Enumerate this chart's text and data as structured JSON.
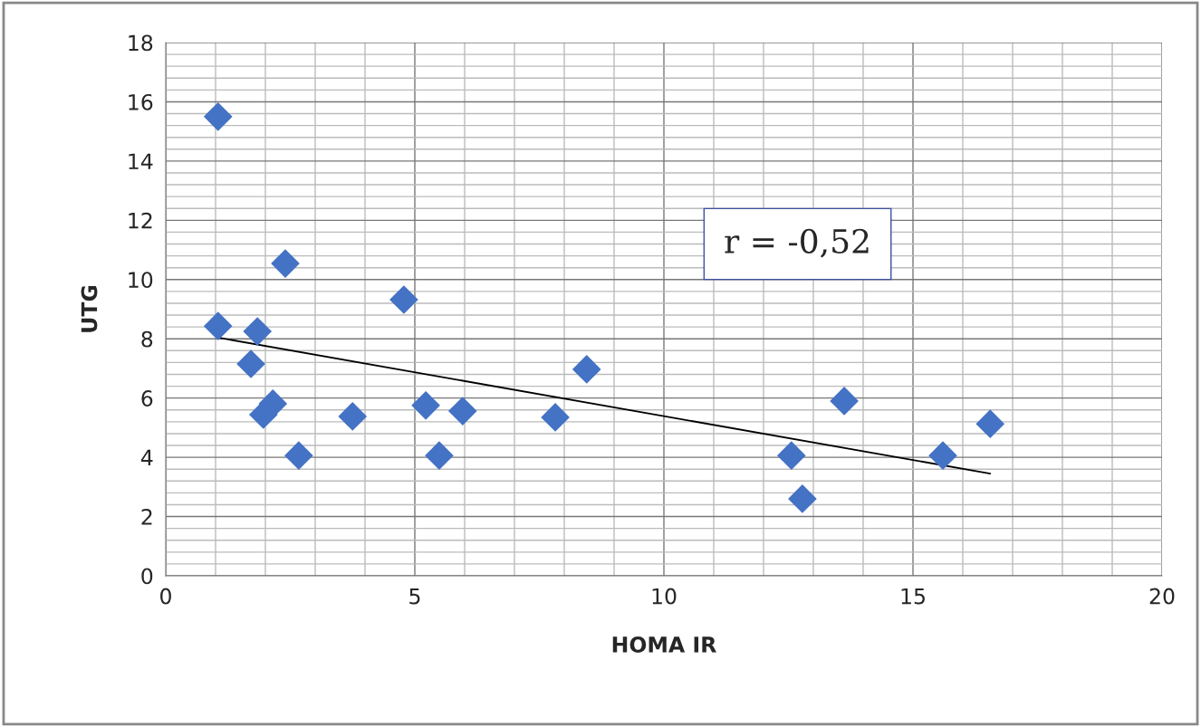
{
  "chart_data": {
    "type": "scatter",
    "xlabel": "HOMA IR",
    "ylabel": "UTG",
    "xlim": [
      0,
      20
    ],
    "xticks": [
      0,
      5,
      10,
      15,
      20
    ],
    "ylim": [
      0,
      18
    ],
    "yticks": [
      0,
      2,
      4,
      6,
      8,
      10,
      12,
      14,
      16,
      18
    ],
    "grid": true,
    "legend": false,
    "series": [
      {
        "color": "#4472c4",
        "marker": "diamond",
        "x": [
          1.05,
          1.05,
          2.4,
          4.78,
          1.84,
          1.71,
          2.15,
          1.96,
          2.67,
          3.75,
          5.22,
          5.49,
          5.96,
          7.82,
          8.45,
          12.56,
          12.78,
          13.62,
          15.6,
          16.55
        ],
        "values": [
          15.5,
          8.43,
          10.54,
          9.32,
          8.25,
          7.15,
          5.81,
          5.44,
          4.06,
          5.38,
          5.75,
          4.06,
          5.56,
          5.35,
          6.97,
          4.06,
          2.6,
          5.9,
          4.06,
          5.13
        ]
      },
      {
        "type": "line",
        "color": "#000000",
        "marker": "none",
        "line_style": "solid",
        "x": [
          1.05,
          16.55
        ],
        "values": [
          8.04,
          3.45
        ]
      }
    ],
    "annotations": [
      "r = -0,52"
    ]
  }
}
